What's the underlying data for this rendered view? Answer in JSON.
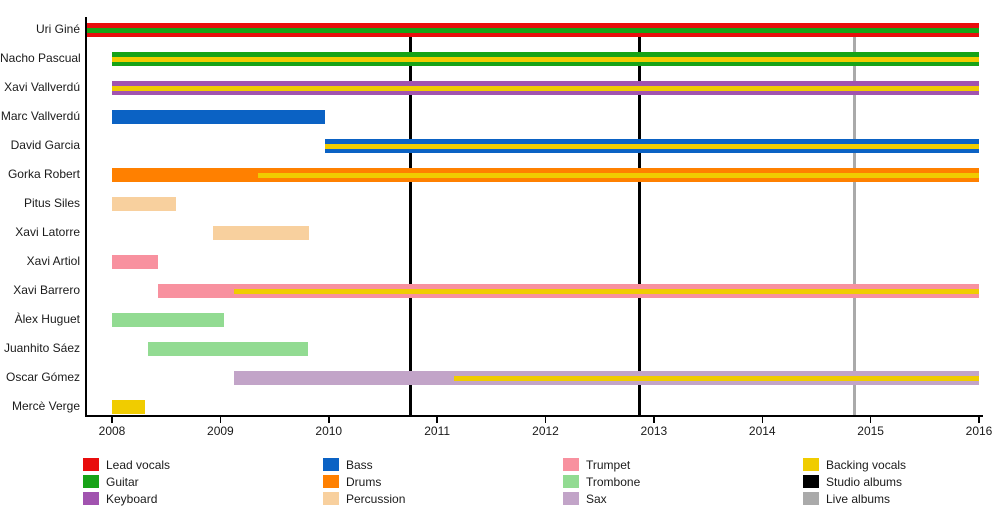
{
  "chart_data": {
    "type": "bar",
    "subtype": "band-membership-timeline-gantt",
    "title": "",
    "xlabel": "",
    "ylabel": "",
    "grid": false,
    "legend_position": "bottom",
    "x_axis": {
      "min": 2007.75,
      "max": 2016.05,
      "ticks": [
        "2008",
        "2009",
        "2010",
        "2011",
        "2012",
        "2013",
        "2014",
        "2015",
        "2016"
      ]
    },
    "colors": {
      "lead_vocals": "#E80D0D",
      "guitar": "#17A317",
      "keyboard": "#A153AF",
      "bass": "#0B62C4",
      "drums": "#FF8000",
      "percussion": "#F8D09E",
      "trumpet": "#F8919F",
      "trombone": "#92DB92",
      "sax": "#C2A4C8",
      "backing_vocals": "#F0CC00",
      "studio_albums": "#000000",
      "live_albums": "#AAAAAA"
    },
    "members": [
      {
        "name": "Uri Giné",
        "segments": [
          {
            "role": "lead_vocals",
            "start": 2007.77,
            "end": 2016.0,
            "stripe_role": "guitar",
            "stripe_start": 2007.77,
            "stripe_end": 2016.0
          }
        ]
      },
      {
        "name": "Nacho Pascual",
        "segments": [
          {
            "role": "guitar",
            "start": 2008.0,
            "end": 2016.0,
            "stripe_role": "backing_vocals",
            "stripe_start": 2008.0,
            "stripe_end": 2016.0
          }
        ]
      },
      {
        "name": "Xavi Vallverdú",
        "segments": [
          {
            "role": "keyboard",
            "start": 2008.0,
            "end": 2016.0,
            "stripe_role": "backing_vocals",
            "stripe_start": 2008.0,
            "stripe_end": 2016.0
          }
        ]
      },
      {
        "name": "Marc Vallverdú",
        "segments": [
          {
            "role": "bass",
            "start": 2008.0,
            "end": 2009.97
          }
        ]
      },
      {
        "name": "David Garcia",
        "segments": [
          {
            "role": "bass",
            "start": 2009.97,
            "end": 2016.0,
            "stripe_role": "backing_vocals",
            "stripe_start": 2009.97,
            "stripe_end": 2016.0
          }
        ]
      },
      {
        "name": "Gorka Robert",
        "segments": [
          {
            "role": "drums",
            "start": 2008.0,
            "end": 2016.0,
            "stripe_role": "backing_vocals",
            "stripe_start": 2009.35,
            "stripe_end": 2016.0
          }
        ]
      },
      {
        "name": "Pitus Siles",
        "segments": [
          {
            "role": "percussion",
            "start": 2008.0,
            "end": 2008.59
          }
        ]
      },
      {
        "name": "Xavi Latorre",
        "segments": [
          {
            "role": "percussion",
            "start": 2008.93,
            "end": 2009.82
          }
        ]
      },
      {
        "name": "Xavi Artiol",
        "segments": [
          {
            "role": "trumpet",
            "start": 2008.0,
            "end": 2008.42
          }
        ]
      },
      {
        "name": "Xavi Barrero",
        "segments": [
          {
            "role": "trumpet",
            "start": 2008.42,
            "end": 2016.0,
            "stripe_role": "backing_vocals",
            "stripe_start": 2009.13,
            "stripe_end": 2016.0
          }
        ]
      },
      {
        "name": "Àlex Huguet",
        "segments": [
          {
            "role": "trombone",
            "start": 2008.0,
            "end": 2009.03
          }
        ]
      },
      {
        "name": "Juanhito Sáez",
        "segments": [
          {
            "role": "trombone",
            "start": 2008.33,
            "end": 2009.81
          }
        ]
      },
      {
        "name": "Oscar Gómez",
        "segments": [
          {
            "role": "sax",
            "start": 2009.13,
            "end": 2016.0,
            "stripe_role": "backing_vocals",
            "stripe_start": 2011.16,
            "stripe_end": 2016.0
          }
        ]
      },
      {
        "name": "Mercè Verge",
        "segments": [
          {
            "role": "backing_vocals",
            "start": 2008.0,
            "end": 2008.3
          }
        ]
      }
    ],
    "events": [
      {
        "type": "studio_albums",
        "year": 2010.75
      },
      {
        "type": "studio_albums",
        "year": 2012.87
      },
      {
        "type": "live_albums",
        "year": 2014.85
      }
    ]
  },
  "legend": {
    "columns": [
      [
        {
          "label": "Lead vocals",
          "key": "lead_vocals"
        },
        {
          "label": "Guitar",
          "key": "guitar"
        },
        {
          "label": "Keyboard",
          "key": "keyboard"
        }
      ],
      [
        {
          "label": "Bass",
          "key": "bass"
        },
        {
          "label": "Drums",
          "key": "drums"
        },
        {
          "label": "Percussion",
          "key": "percussion"
        }
      ],
      [
        {
          "label": "Trumpet",
          "key": "trumpet"
        },
        {
          "label": "Trombone",
          "key": "trombone"
        },
        {
          "label": "Sax",
          "key": "sax"
        }
      ],
      [
        {
          "label": "Backing vocals",
          "key": "backing_vocals"
        },
        {
          "label": "Studio albums",
          "key": "studio_albums"
        },
        {
          "label": "Live albums",
          "key": "live_albums"
        }
      ]
    ]
  }
}
